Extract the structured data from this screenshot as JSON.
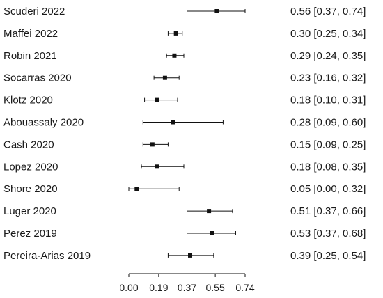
{
  "chart_data": {
    "type": "forest",
    "studies": [
      {
        "label": "Scuderi 2022",
        "estimate": 0.56,
        "lower": 0.37,
        "upper": 0.74,
        "text": "0.56 [0.37, 0.74]"
      },
      {
        "label": "Maffei 2022",
        "estimate": 0.3,
        "lower": 0.25,
        "upper": 0.34,
        "text": "0.30 [0.25, 0.34]"
      },
      {
        "label": "Robin 2021",
        "estimate": 0.29,
        "lower": 0.24,
        "upper": 0.35,
        "text": "0.29 [0.24, 0.35]"
      },
      {
        "label": "Socarras 2020",
        "estimate": 0.23,
        "lower": 0.16,
        "upper": 0.32,
        "text": "0.23 [0.16, 0.32]"
      },
      {
        "label": "Klotz 2020",
        "estimate": 0.18,
        "lower": 0.1,
        "upper": 0.31,
        "text": "0.18 [0.10, 0.31]"
      },
      {
        "label": "Abouassaly 2020",
        "estimate": 0.28,
        "lower": 0.09,
        "upper": 0.6,
        "text": "0.28 [0.09, 0.60]"
      },
      {
        "label": "Cash 2020",
        "estimate": 0.15,
        "lower": 0.09,
        "upper": 0.25,
        "text": "0.15 [0.09, 0.25]"
      },
      {
        "label": "Lopez 2020",
        "estimate": 0.18,
        "lower": 0.08,
        "upper": 0.35,
        "text": "0.18 [0.08, 0.35]"
      },
      {
        "label": "Shore 2020",
        "estimate": 0.05,
        "lower": 0.0,
        "upper": 0.32,
        "text": "0.05 [0.00, 0.32]"
      },
      {
        "label": "Luger 2020",
        "estimate": 0.51,
        "lower": 0.37,
        "upper": 0.66,
        "text": "0.51 [0.37, 0.66]"
      },
      {
        "label": "Perez 2019",
        "estimate": 0.53,
        "lower": 0.37,
        "upper": 0.68,
        "text": "0.53 [0.37, 0.68]"
      },
      {
        "label": "Pereira-Arias 2019",
        "estimate": 0.39,
        "lower": 0.25,
        "upper": 0.54,
        "text": "0.39 [0.25, 0.54]"
      }
    ],
    "xticks": [
      0.0,
      0.19,
      0.37,
      0.55,
      0.74
    ],
    "xtick_labels": [
      "0.00",
      "0.19",
      "0.37",
      "0.55",
      "0.74"
    ],
    "xlim": [
      0.0,
      0.74
    ],
    "grid": false,
    "legend": "none",
    "colors": {
      "marker": "#111111",
      "line": "#111111",
      "text": "#1a1a1a"
    }
  }
}
